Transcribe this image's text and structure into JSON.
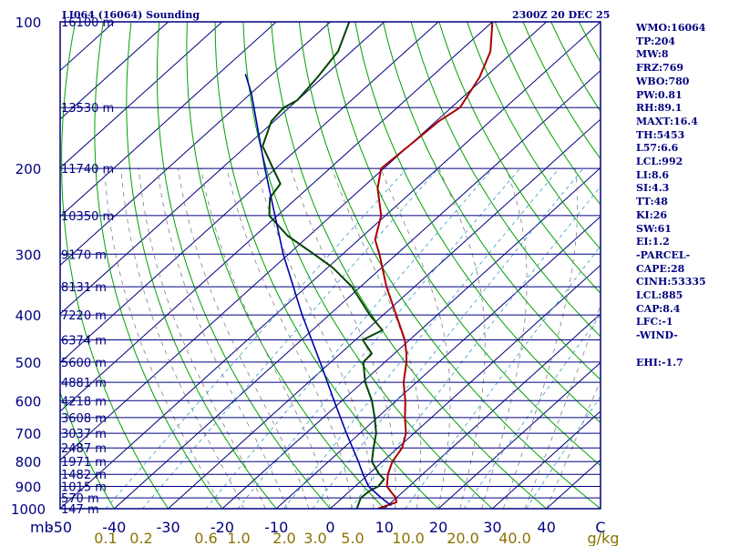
{
  "header": {
    "station": "LI064 (16064) Sounding",
    "time": "2300Z 20 DEC 25"
  },
  "indices": [
    "WMO:16064",
    "TP:204",
    "MW:8",
    "FRZ:769",
    "WBO:780",
    "PW:0.81",
    "RH:89.1",
    "MAXT:16.4",
    "TH:5453",
    "L57:6.6",
    "LCL:992",
    "LI:8.6",
    "SI:4.3",
    "TT:48",
    "KI:26",
    "SW:61",
    "EI:1.2",
    "-PARCEL-",
    "CAPE:28",
    "CINH:53335",
    "LCL:885",
    "CAP:8.4",
    "LFC:-1",
    "-WIND-",
    "",
    "EHI:-1.7"
  ],
  "colors": {
    "frame": "#000080",
    "isobar": "#000080",
    "isotherm": "#000080",
    "dry_adiabat": "#00a000",
    "moist_adiabat": "#808080",
    "mixing_ratio": "#3399cc",
    "temperature": "#aa0000",
    "dewpoint": "#004400",
    "parcel": "#0000aa",
    "mixing_label": "#8b7300"
  },
  "chart_data": {
    "type": "skew-t",
    "title": "LI064 (16064) Sounding 2300Z 20 DEC 25",
    "pressure_range_mb": [
      1000,
      100
    ],
    "temperature_range_c": [
      -50,
      50
    ],
    "pressure_unit_label": "mb",
    "mixing_ratio_unit": "g/kg",
    "pressure_ticks": [
      1000,
      900,
      800,
      700,
      600,
      500,
      400,
      300,
      200,
      100
    ],
    "temperature_ticks": [
      "-50",
      "-40",
      "-30",
      "-20",
      "-10",
      "0",
      "10",
      "20",
      "30",
      "40",
      "C"
    ],
    "mixing_ratio_labels": [
      "0.1",
      "0.2",
      "0.6",
      "1.0",
      "2.0",
      "3.0",
      "5.0",
      "10.0",
      "20.0",
      "40.0"
    ],
    "height_labels": [
      {
        "p": 100,
        "text": "16100 m"
      },
      {
        "p": 150,
        "text": "13530 m"
      },
      {
        "p": 200,
        "text": "11740 m"
      },
      {
        "p": 250,
        "text": "10350 m"
      },
      {
        "p": 300,
        "text": "9170 m"
      },
      {
        "p": 350,
        "text": "8131 m"
      },
      {
        "p": 400,
        "text": "7220 m"
      },
      {
        "p": 450,
        "text": "6374 m"
      },
      {
        "p": 500,
        "text": "5600 m"
      },
      {
        "p": 550,
        "text": "4881 m"
      },
      {
        "p": 600,
        "text": "4218 m"
      },
      {
        "p": 650,
        "text": "3608 m"
      },
      {
        "p": 700,
        "text": "3037 m"
      },
      {
        "p": 750,
        "text": "2487 m"
      },
      {
        "p": 800,
        "text": "1971 m"
      },
      {
        "p": 850,
        "text": "1482 m"
      },
      {
        "p": 900,
        "text": "1015 m"
      },
      {
        "p": 950,
        "text": "570 m"
      },
      {
        "p": 1000,
        "text": "147 m"
      }
    ],
    "series": [
      {
        "name": "temperature",
        "points": [
          {
            "p": 1000,
            "t": 8.8
          },
          {
            "p": 970,
            "t": 10.9
          },
          {
            "p": 950,
            "t": 9.9
          },
          {
            "p": 925,
            "t": 7.9
          },
          {
            "p": 900,
            "t": 5.9
          },
          {
            "p": 850,
            "t": 3.6
          },
          {
            "p": 800,
            "t": 1.8
          },
          {
            "p": 750,
            "t": 0.8
          },
          {
            "p": 700,
            "t": -1.5
          },
          {
            "p": 650,
            "t": -4.9
          },
          {
            "p": 600,
            "t": -8.3
          },
          {
            "p": 550,
            "t": -12.4
          },
          {
            "p": 500,
            "t": -16.0
          },
          {
            "p": 480,
            "t": -17.8
          },
          {
            "p": 450,
            "t": -20.9
          },
          {
            "p": 400,
            "t": -27.6
          },
          {
            "p": 350,
            "t": -35.2
          },
          {
            "p": 300,
            "t": -43.2
          },
          {
            "p": 280,
            "t": -47.0
          },
          {
            "p": 250,
            "t": -50.8
          },
          {
            "p": 220,
            "t": -57.0
          },
          {
            "p": 200,
            "t": -60.5
          },
          {
            "p": 180,
            "t": -60.0
          },
          {
            "p": 160,
            "t": -59.5
          },
          {
            "p": 150,
            "t": -58.4
          },
          {
            "p": 130,
            "t": -61.0
          },
          {
            "p": 115,
            "t": -64.3
          },
          {
            "p": 100,
            "t": -70.0
          }
        ]
      },
      {
        "name": "dewpoint",
        "points": [
          {
            "p": 1000,
            "t": 4.9
          },
          {
            "p": 950,
            "t": 3.4
          },
          {
            "p": 920,
            "t": 3.6
          },
          {
            "p": 900,
            "t": 4.3
          },
          {
            "p": 870,
            "t": 3.9
          },
          {
            "p": 850,
            "t": 2.0
          },
          {
            "p": 800,
            "t": -2.0
          },
          {
            "p": 750,
            "t": -4.5
          },
          {
            "p": 700,
            "t": -7.0
          },
          {
            "p": 650,
            "t": -10.5
          },
          {
            "p": 600,
            "t": -14.5
          },
          {
            "p": 550,
            "t": -19.5
          },
          {
            "p": 500,
            "t": -24.0
          },
          {
            "p": 480,
            "t": -24.2
          },
          {
            "p": 450,
            "t": -28.7
          },
          {
            "p": 430,
            "t": -27.0
          },
          {
            "p": 400,
            "t": -32.5
          },
          {
            "p": 350,
            "t": -41.6
          },
          {
            "p": 320,
            "t": -49.0
          },
          {
            "p": 300,
            "t": -55.3
          },
          {
            "p": 275,
            "t": -64.0
          },
          {
            "p": 250,
            "t": -71.5
          },
          {
            "p": 230,
            "t": -75.0
          },
          {
            "p": 215,
            "t": -76.0
          },
          {
            "p": 200,
            "t": -80.5
          },
          {
            "p": 180,
            "t": -87.0
          },
          {
            "p": 160,
            "t": -90.5
          },
          {
            "p": 150,
            "t": -91.0
          },
          {
            "p": 145,
            "t": -90.0
          },
          {
            "p": 130,
            "t": -91.0
          },
          {
            "p": 115,
            "t": -92.5
          },
          {
            "p": 100,
            "t": -96.5
          }
        ]
      },
      {
        "name": "parcel",
        "points": [
          {
            "p": 985,
            "t": 10.6
          },
          {
            "p": 950,
            "t": 7.2
          },
          {
            "p": 900,
            "t": 2.5
          },
          {
            "p": 850,
            "t": -1.0
          },
          {
            "p": 800,
            "t": -4.5
          },
          {
            "p": 700,
            "t": -12.5
          },
          {
            "p": 600,
            "t": -21.5
          },
          {
            "p": 500,
            "t": -32.0
          },
          {
            "p": 400,
            "t": -45.0
          },
          {
            "p": 300,
            "t": -61.0
          },
          {
            "p": 200,
            "t": -82.0
          },
          {
            "p": 140,
            "t": -100.0
          },
          {
            "p": 128,
            "t": -105.0
          }
        ]
      }
    ]
  }
}
